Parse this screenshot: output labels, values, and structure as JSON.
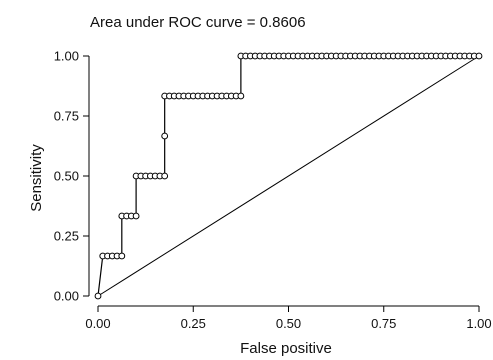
{
  "chart_data": {
    "type": "line",
    "title": "Area under ROC curve = 0.8606",
    "xlabel": "False positive",
    "ylabel": "Sensitivity",
    "xlim": [
      0,
      1
    ],
    "ylim": [
      0,
      1
    ],
    "xticks": [
      "0.00",
      "0.25",
      "0.50",
      "0.75",
      "1.00"
    ],
    "yticks": [
      "0.00",
      "0.25",
      "0.50",
      "0.75",
      "1.00"
    ],
    "grid": false,
    "series": [
      {
        "x": [
          0,
          0.0125,
          0.025,
          0.0375,
          0.05,
          0.0625,
          0.0625,
          0.075,
          0.0875,
          0.1,
          0.1,
          0.1125,
          0.125,
          0.1375,
          0.15,
          0.1625,
          0.175,
          0.175,
          0.175,
          0.1875,
          0.2,
          0.2125,
          0.225,
          0.2375,
          0.25,
          0.2625,
          0.275,
          0.2875,
          0.3,
          0.3125,
          0.325,
          0.3375,
          0.35,
          0.3625,
          0.375,
          0.375,
          0.3875,
          0.4,
          0.4125,
          0.425,
          0.4375,
          0.45,
          0.4625,
          0.475,
          0.4875,
          0.5,
          0.5125,
          0.525,
          0.5375,
          0.55,
          0.5625,
          0.575,
          0.5875,
          0.6,
          0.6125,
          0.625,
          0.6375,
          0.65,
          0.6625,
          0.675,
          0.6875,
          0.7,
          0.7125,
          0.725,
          0.7375,
          0.75,
          0.7625,
          0.775,
          0.7875,
          0.8,
          0.8125,
          0.825,
          0.8375,
          0.85,
          0.8625,
          0.875,
          0.8875,
          0.9,
          0.9125,
          0.925,
          0.9375,
          0.95,
          0.9625,
          0.975,
          0.9875,
          1.0
        ],
        "y": [
          0,
          0.1667,
          0.1667,
          0.1667,
          0.1667,
          0.1667,
          0.3333,
          0.3333,
          0.3333,
          0.3333,
          0.5,
          0.5,
          0.5,
          0.5,
          0.5,
          0.5,
          0.5,
          0.6667,
          0.8333,
          0.8333,
          0.8333,
          0.8333,
          0.8333,
          0.8333,
          0.8333,
          0.8333,
          0.8333,
          0.8333,
          0.8333,
          0.8333,
          0.8333,
          0.8333,
          0.8333,
          0.8333,
          0.8333,
          1.0,
          1.0,
          1.0,
          1.0,
          1.0,
          1.0,
          1.0,
          1.0,
          1.0,
          1.0,
          1.0,
          1.0,
          1.0,
          1.0,
          1.0,
          1.0,
          1.0,
          1.0,
          1.0,
          1.0,
          1.0,
          1.0,
          1.0,
          1.0,
          1.0,
          1.0,
          1.0,
          1.0,
          1.0,
          1.0,
          1.0,
          1.0,
          1.0,
          1.0,
          1.0,
          1.0,
          1.0,
          1.0,
          1.0,
          1.0,
          1.0,
          1.0,
          1.0,
          1.0,
          1.0,
          1.0,
          1.0,
          1.0,
          1.0,
          1.0,
          1.0
        ]
      }
    ],
    "reference_line": {
      "x": [
        0,
        1
      ],
      "y": [
        0,
        1
      ]
    }
  }
}
